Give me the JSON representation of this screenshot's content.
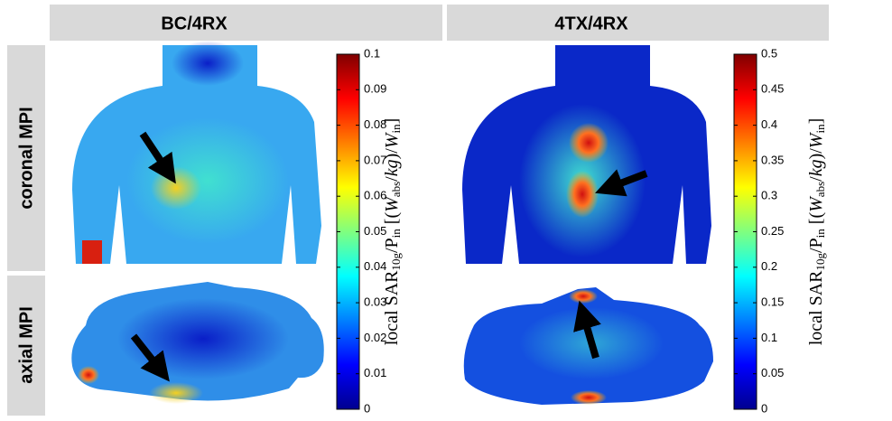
{
  "headers": {
    "columns": [
      "BC/4RX",
      "4TX/4RX"
    ],
    "rows": [
      "coronal MPI",
      "axial MPI"
    ]
  },
  "colorbars": [
    {
      "lim": [
        0,
        0.1
      ],
      "ticks": [
        0,
        0.01,
        0.02,
        0.03,
        0.04,
        0.05,
        0.06,
        0.07,
        0.08,
        0.09,
        0.1
      ],
      "label": [
        "local SAR",
        "10g",
        "/P",
        "in",
        " [(",
        "W",
        "abs",
        "/",
        "kg",
        ")/",
        "W",
        "in",
        "]"
      ]
    },
    {
      "lim": [
        0,
        0.5
      ],
      "ticks": [
        0,
        0.05,
        0.1,
        0.15,
        0.2,
        0.25,
        0.3,
        0.35,
        0.4,
        0.45,
        0.5
      ],
      "label": [
        "local SAR",
        "10g",
        "/P",
        "in",
        " [(",
        "W",
        "abs",
        "/",
        "kg",
        ")/",
        "W",
        "in",
        "]"
      ]
    }
  ]
}
